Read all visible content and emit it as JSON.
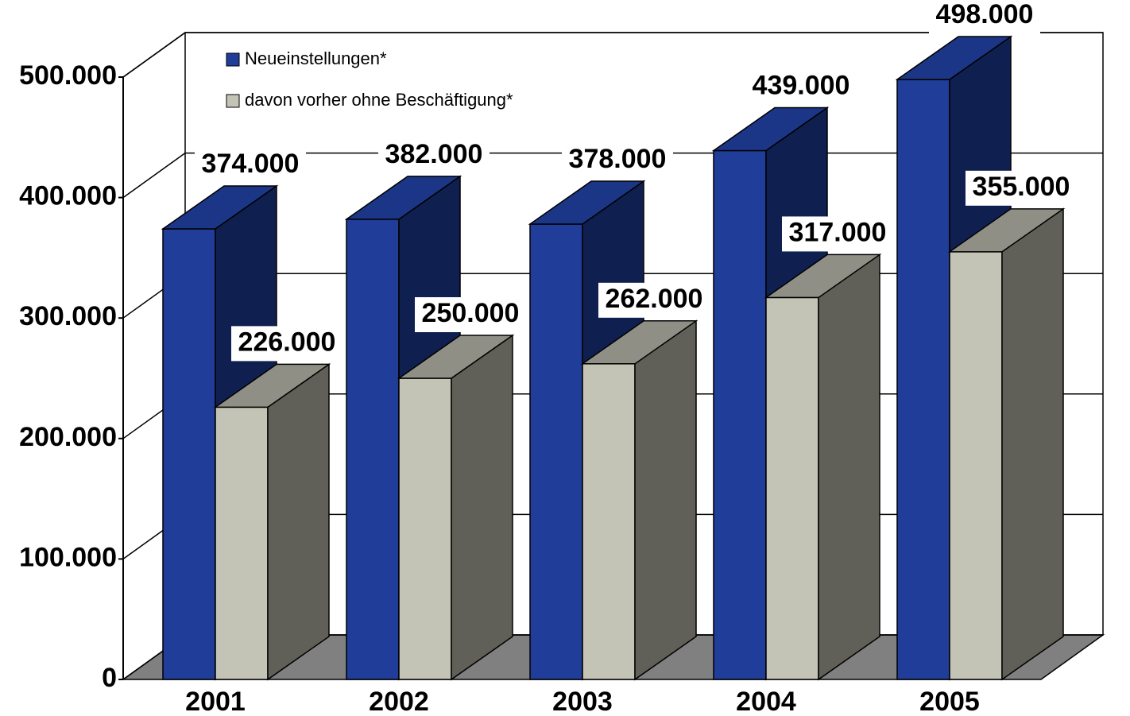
{
  "chart_data": {
    "type": "bar3d",
    "categories": [
      "2001",
      "2002",
      "2003",
      "2004",
      "2005"
    ],
    "series": [
      {
        "name": "Neueinstellungen*",
        "color": "#1f3d99",
        "values": [
          374000,
          382000,
          378000,
          439000,
          498000
        ],
        "value_labels": [
          "374.000",
          "382.000",
          "378.000",
          "439.000",
          "498.000"
        ]
      },
      {
        "name": "davon vorher ohne Beschäftigung*",
        "color": "#c4c4b6",
        "values": [
          226000,
          250000,
          262000,
          317000,
          355000
        ],
        "value_labels": [
          "226.000",
          "250.000",
          "262.000",
          "317.000",
          "355.000"
        ]
      }
    ],
    "ylim": [
      0,
      500000
    ],
    "yticks": [
      0,
      {
        "value": 100000,
        "label": "100.000"
      },
      {
        "value": 200000,
        "label": "200.000"
      },
      {
        "value": 300000,
        "label": "300.000"
      },
      {
        "value": 400000,
        "label": "400.000"
      },
      {
        "value": 500000,
        "label": "500.000"
      }
    ],
    "grid": true,
    "legend": "top-left"
  }
}
